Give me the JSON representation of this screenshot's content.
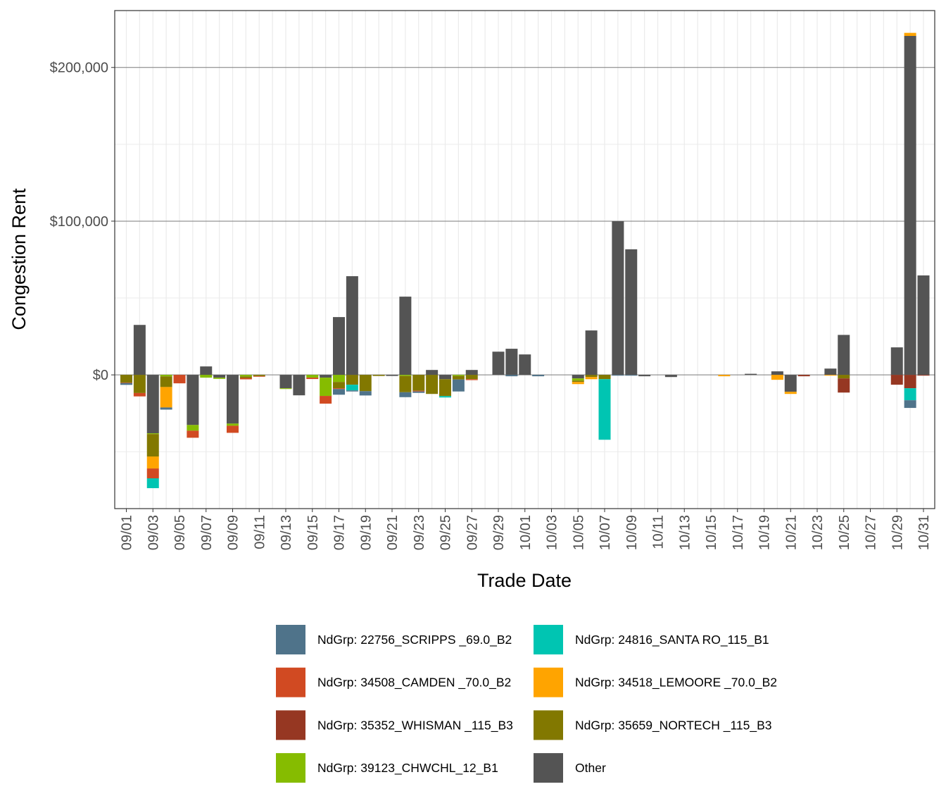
{
  "chart_data": {
    "type": "bar",
    "stacked": true,
    "title": "",
    "xlabel": "Trade Date",
    "ylabel": "Congestion Rent",
    "ylim": [
      -87000,
      237000
    ],
    "yticks": [
      0,
      100000,
      200000
    ],
    "ytick_labels": [
      "$0",
      "$100,000",
      "$200,000"
    ],
    "grid": true,
    "legend_position": "bottom",
    "x": [
      "09/01",
      "09/02",
      "09/03",
      "09/04",
      "09/05",
      "09/06",
      "09/07",
      "09/08",
      "09/09",
      "09/10",
      "09/11",
      "09/12",
      "09/13",
      "09/14",
      "09/15",
      "09/16",
      "09/17",
      "09/18",
      "09/19",
      "09/20",
      "09/21",
      "09/22",
      "09/23",
      "09/24",
      "09/25",
      "09/26",
      "09/27",
      "09/28",
      "09/29",
      "09/30",
      "10/01",
      "10/02",
      "10/03",
      "10/04",
      "10/05",
      "10/06",
      "10/07",
      "10/08",
      "10/09",
      "10/10",
      "10/11",
      "10/12",
      "10/13",
      "10/14",
      "10/15",
      "10/16",
      "10/17",
      "10/18",
      "10/19",
      "10/20",
      "10/21",
      "10/22",
      "10/23",
      "10/24",
      "10/25",
      "10/26",
      "10/27",
      "10/28",
      "10/29",
      "10/30",
      "10/31"
    ],
    "xtick_labels": [
      "09/01",
      "09/03",
      "09/05",
      "09/07",
      "09/09",
      "09/11",
      "09/13",
      "09/15",
      "09/17",
      "09/19",
      "09/21",
      "09/23",
      "09/25",
      "09/27",
      "09/29",
      "10/01",
      "10/03",
      "10/05",
      "10/07",
      "10/09",
      "10/11",
      "10/13",
      "10/15",
      "10/17",
      "10/19",
      "10/21",
      "10/23",
      "10/25",
      "10/27",
      "10/29",
      "10/31"
    ],
    "series": [
      {
        "name": "NdGrp: 22756_SCRIPPS _69.0_B2",
        "color": "#4f738a",
        "values": [
          -1200,
          0,
          0,
          -1400,
          0,
          0,
          0,
          0,
          0,
          0,
          0,
          0,
          0,
          0,
          0,
          0,
          -3700,
          -700,
          -2800,
          0,
          0,
          -3200,
          -900,
          0,
          0,
          -7800,
          0,
          0,
          0,
          -900,
          0,
          -900,
          0,
          0,
          0,
          0,
          0,
          -500,
          -500,
          0,
          0,
          0,
          0,
          0,
          0,
          0,
          0,
          0,
          0,
          0,
          0,
          0,
          0,
          0,
          0,
          0,
          0,
          0,
          0,
          -5000,
          0
        ]
      },
      {
        "name": "NdGrp: 24816_SANTA RO_115_B1",
        "color": "#00c5b2",
        "values": [
          0,
          0,
          -6400,
          0,
          0,
          0,
          0,
          0,
          0,
          0,
          0,
          0,
          0,
          0,
          0,
          0,
          0,
          -3700,
          0,
          0,
          0,
          0,
          0,
          0,
          -900,
          0,
          0,
          0,
          0,
          0,
          0,
          0,
          0,
          0,
          0,
          0,
          -39400,
          0,
          0,
          0,
          0,
          0,
          0,
          0,
          0,
          0,
          0,
          0,
          0,
          0,
          0,
          0,
          0,
          0,
          0,
          0,
          0,
          0,
          0,
          -7800,
          0
        ]
      },
      {
        "name": "NdGrp: 34508_CAMDEN  _70.0_B2",
        "color": "#d14a22",
        "values": [
          -300,
          -2200,
          -6400,
          0,
          -5500,
          -4600,
          0,
          0,
          -4600,
          -900,
          -400,
          0,
          0,
          0,
          -900,
          -5000,
          -500,
          0,
          0,
          0,
          0,
          0,
          -500,
          0,
          0,
          0,
          -600,
          0,
          0,
          0,
          0,
          0,
          0,
          0,
          0,
          0,
          0,
          0,
          0,
          0,
          0,
          0,
          0,
          0,
          0,
          0,
          0,
          0,
          0,
          0,
          0,
          0,
          0,
          0,
          0,
          0,
          0,
          0,
          0,
          0,
          0
        ]
      },
      {
        "name": "NdGrp: 34518_LEMOORE _70.0_B2",
        "color": "#ffa400",
        "values": [
          0,
          0,
          -7800,
          -13300,
          0,
          0,
          0,
          0,
          0,
          0,
          0,
          0,
          0,
          0,
          0,
          0,
          0,
          0,
          0,
          0,
          0,
          0,
          0,
          0,
          0,
          0,
          0,
          0,
          0,
          0,
          0,
          0,
          0,
          0,
          -1400,
          -1400,
          0,
          0,
          0,
          0,
          0,
          0,
          0,
          0,
          0,
          -900,
          0,
          0,
          0,
          -3200,
          -1400,
          0,
          0,
          -500,
          0,
          0,
          0,
          0,
          0,
          2000,
          0
        ]
      },
      {
        "name": "NdGrp: 35352_WHISMAN _115_B3",
        "color": "#963722",
        "values": [
          0,
          0,
          0,
          0,
          0,
          0,
          0,
          0,
          0,
          0,
          0,
          0,
          0,
          0,
          0,
          0,
          0,
          0,
          0,
          0,
          0,
          0,
          0,
          0,
          0,
          0,
          0,
          0,
          0,
          0,
          0,
          0,
          0,
          0,
          0,
          0,
          0,
          0,
          0,
          0,
          0,
          0,
          0,
          0,
          0,
          0,
          0,
          0,
          0,
          0,
          0,
          -900,
          0,
          0,
          -9200,
          0,
          0,
          0,
          -6400,
          -8700,
          -500
        ]
      },
      {
        "name": "NdGrp: 35659_NORTECH _115_B3",
        "color": "#827800",
        "values": [
          -5000,
          -11800,
          -14600,
          -6900,
          0,
          0,
          0,
          0,
          0,
          -1000,
          -800,
          0,
          0,
          0,
          0,
          0,
          -4100,
          -6400,
          -10600,
          -700,
          0,
          -10600,
          -10300,
          -12400,
          -11000,
          -2300,
          -2800,
          0,
          0,
          0,
          0,
          0,
          0,
          0,
          -900,
          -1400,
          -2800,
          0,
          0,
          0,
          0,
          0,
          0,
          0,
          0,
          0,
          0,
          0,
          0,
          0,
          0,
          0,
          0,
          0,
          -2300,
          0,
          0,
          0,
          0,
          0,
          0
        ]
      },
      {
        "name": "NdGrp: 39123_CHWCHL_12_B1",
        "color": "#86bc00",
        "values": [
          0,
          0,
          -500,
          -1000,
          0,
          -3700,
          -1800,
          -800,
          -1400,
          -1000,
          0,
          0,
          -500,
          0,
          -1800,
          -11900,
          -4600,
          0,
          0,
          0,
          0,
          -700,
          0,
          0,
          0,
          -700,
          0,
          0,
          0,
          0,
          0,
          0,
          0,
          0,
          -1400,
          0,
          0,
          0,
          0,
          0,
          0,
          0,
          0,
          0,
          0,
          0,
          0,
          0,
          0,
          0,
          0,
          0,
          0,
          0,
          0,
          0,
          0,
          0,
          0,
          0,
          0
        ]
      },
      {
        "name": "Other",
        "color": "#545454",
        "values": [
          0,
          32500,
          -38000,
          0,
          0,
          -32600,
          5500,
          -1800,
          -31700,
          0,
          0,
          0,
          -8700,
          -13300,
          0,
          -1800,
          37600,
          64200,
          0,
          0,
          -700,
          50900,
          0,
          3200,
          -2800,
          0,
          3200,
          0,
          15100,
          17000,
          13300,
          0,
          0,
          0,
          -2300,
          28900,
          0,
          100000,
          81700,
          -900,
          0,
          -1400,
          0,
          0,
          0,
          0,
          0,
          700,
          0,
          2300,
          -11000,
          0,
          0,
          4100,
          26000,
          0,
          0,
          0,
          17900,
          220500,
          64700
        ]
      }
    ]
  }
}
